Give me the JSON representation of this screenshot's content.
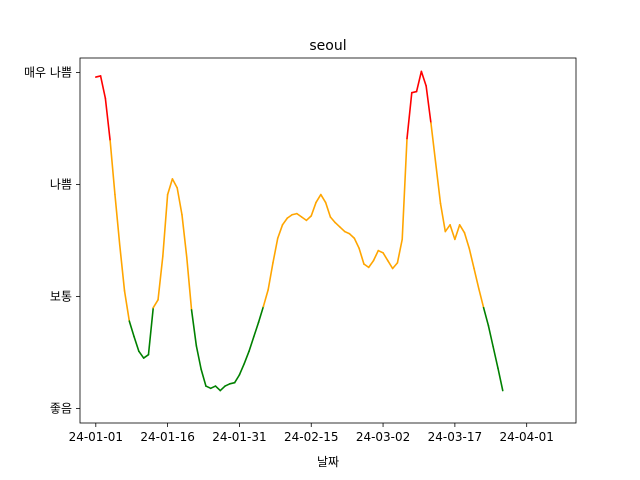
{
  "chart_data": {
    "type": "line",
    "title": "seoul",
    "xlabel": "날짜",
    "ylabel": "",
    "x_ticks": [
      "24-01-01",
      "24-01-16",
      "24-01-31",
      "24-02-15",
      "24-03-02",
      "24-03-17",
      "24-04-01"
    ],
    "y_ticks": [
      "좋음",
      "보통",
      "나쁨",
      "매우 나쁨"
    ],
    "grid": false,
    "colors": {
      "good": "#008000",
      "normal": "#ffa500",
      "bad": "#ff0000",
      "axis": "#000000"
    },
    "x_start_date": "2024-01-01",
    "x_range_days": [
      -3.3,
      100.3
    ],
    "y_range": [
      -0.13,
      3.13
    ],
    "points": [
      [
        0,
        2.96
      ],
      [
        1,
        2.97
      ],
      [
        2,
        2.77
      ],
      [
        3,
        2.39
      ],
      [
        4,
        1.91
      ],
      [
        5,
        1.46
      ],
      [
        6,
        1.05
      ],
      [
        7,
        0.78
      ],
      [
        8,
        0.64
      ],
      [
        9,
        0.51
      ],
      [
        10,
        0.45
      ],
      [
        11,
        0.48
      ],
      [
        12,
        0.9
      ],
      [
        13,
        0.97
      ],
      [
        14,
        1.36
      ],
      [
        15,
        1.91
      ],
      [
        16,
        2.05
      ],
      [
        17,
        1.97
      ],
      [
        18,
        1.73
      ],
      [
        19,
        1.35
      ],
      [
        20,
        0.88
      ],
      [
        21,
        0.56
      ],
      [
        22,
        0.35
      ],
      [
        23,
        0.2
      ],
      [
        24,
        0.18
      ],
      [
        25,
        0.2
      ],
      [
        26,
        0.16
      ],
      [
        27,
        0.2
      ],
      [
        28,
        0.22
      ],
      [
        29,
        0.23
      ],
      [
        30,
        0.3
      ],
      [
        31,
        0.4
      ],
      [
        32,
        0.51
      ],
      [
        33,
        0.64
      ],
      [
        34,
        0.77
      ],
      [
        35,
        0.91
      ],
      [
        36,
        1.06
      ],
      [
        37,
        1.3
      ],
      [
        38,
        1.52
      ],
      [
        39,
        1.64
      ],
      [
        40,
        1.7
      ],
      [
        41,
        1.73
      ],
      [
        42,
        1.74
      ],
      [
        43,
        1.71
      ],
      [
        44,
        1.68
      ],
      [
        45,
        1.72
      ],
      [
        46,
        1.84
      ],
      [
        47,
        1.91
      ],
      [
        48,
        1.84
      ],
      [
        49,
        1.71
      ],
      [
        50,
        1.66
      ],
      [
        51,
        1.62
      ],
      [
        52,
        1.58
      ],
      [
        53,
        1.56
      ],
      [
        54,
        1.52
      ],
      [
        55,
        1.43
      ],
      [
        56,
        1.29
      ],
      [
        57,
        1.26
      ],
      [
        58,
        1.32
      ],
      [
        59,
        1.41
      ],
      [
        60,
        1.39
      ],
      [
        61,
        1.32
      ],
      [
        62,
        1.25
      ],
      [
        63,
        1.3
      ],
      [
        64,
        1.51
      ],
      [
        65,
        2.41
      ],
      [
        66,
        2.82
      ],
      [
        67,
        2.83
      ],
      [
        68,
        3.01
      ],
      [
        69,
        2.88
      ],
      [
        70,
        2.55
      ],
      [
        71,
        2.19
      ],
      [
        72,
        1.83
      ],
      [
        73,
        1.58
      ],
      [
        74,
        1.64
      ],
      [
        75,
        1.51
      ],
      [
        76,
        1.64
      ],
      [
        77,
        1.57
      ],
      [
        78,
        1.43
      ],
      [
        79,
        1.25
      ],
      [
        80,
        1.07
      ],
      [
        81,
        0.9
      ],
      [
        82,
        0.74
      ],
      [
        83,
        0.55
      ],
      [
        84,
        0.36
      ],
      [
        85,
        0.16
      ]
    ]
  }
}
